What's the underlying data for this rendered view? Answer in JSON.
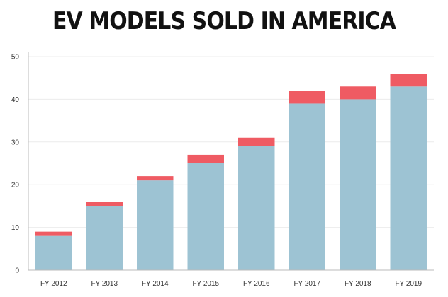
{
  "chart_data": {
    "type": "bar",
    "stacked": true,
    "title": "EV MODELS SOLD IN AMERICA",
    "xlabel": "",
    "ylabel": "",
    "categories": [
      "FY 2012",
      "FY 2013",
      "FY 2014",
      "FY 2015",
      "FY 2016",
      "FY 2017",
      "FY 2018",
      "FY 2019"
    ],
    "series": [
      {
        "values": [
          8,
          15,
          21,
          25,
          29,
          39,
          40,
          43
        ],
        "color": "#9dc3d3"
      },
      {
        "values": [
          1,
          1,
          1,
          2,
          2,
          3,
          3,
          3
        ],
        "color": "#ef5b63"
      }
    ],
    "ylim": [
      0,
      50
    ],
    "yticks": [
      0,
      10,
      20,
      30,
      40,
      50
    ],
    "grid": true,
    "legend": "none"
  }
}
